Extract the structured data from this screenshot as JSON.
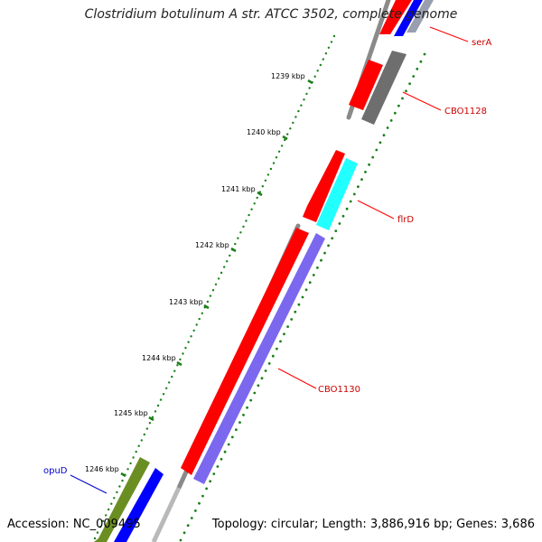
{
  "title": "Clostridium botulinum A str. ATCC 3502, complete genome",
  "accession": "Accession: NC_009495",
  "topology": "Topology: circular; Length: 3,886,916 bp; Genes: 3,686",
  "scale_ticks": [
    "1239 kbp",
    "1240 kbp",
    "1241 kbp",
    "1242 kbp",
    "1243 kbp",
    "1244 kbp",
    "1245 kbp",
    "1246 kbp"
  ],
  "genes": [
    {
      "name": "serA",
      "color": "#cc0000"
    },
    {
      "name": "CBO1128",
      "color": "#cc0000"
    },
    {
      "name": "flrD",
      "color": "#cc0000"
    },
    {
      "name": "CBO1130",
      "color": "#cc0000"
    },
    {
      "name": "opuD",
      "color": "#0000cc"
    }
  ],
  "colors": {
    "forward_cds": "#ff0000",
    "reverse_cds_blue": "#0000ff",
    "reverse_cds_purple": "#7b68ee",
    "gray_feature": "#707070",
    "cyan_feature": "#00ffff",
    "olive_feature": "#6b8e23",
    "backbone": "#888888",
    "tick_green": "#1a7f1a"
  }
}
